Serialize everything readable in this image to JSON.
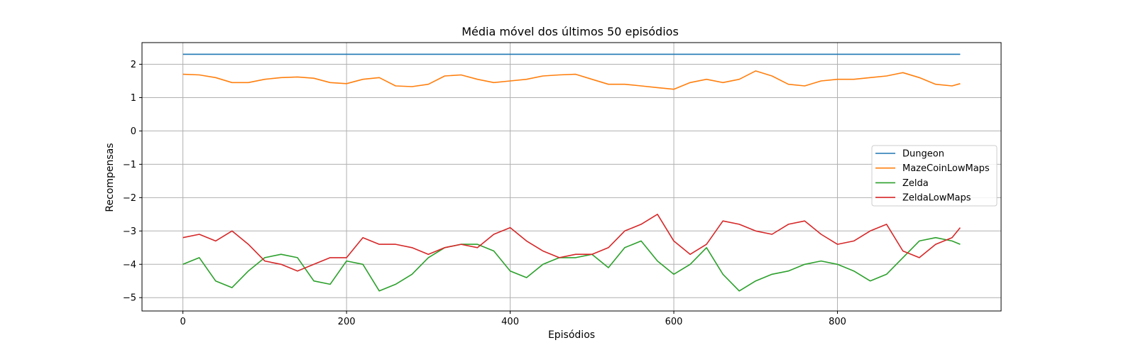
{
  "chart_data": {
    "type": "line",
    "title": "Média móvel dos últimos 50 episódios",
    "xlabel": "Episódios",
    "ylabel": "Recompensas",
    "xlim": [
      -50,
      1000
    ],
    "ylim": [
      -5.4,
      2.65
    ],
    "xticks": [
      0,
      200,
      400,
      600,
      800
    ],
    "yticks": [
      -5,
      -4,
      -3,
      -2,
      -1,
      0,
      1,
      2
    ],
    "ytick_labels": [
      "−5",
      "−4",
      "−3",
      "−2",
      "−1",
      "0",
      "1",
      "2"
    ],
    "grid": true,
    "legend_position": "right",
    "series": [
      {
        "name": "Dungeon",
        "color": "#1f77b4",
        "x": [
          0,
          950
        ],
        "y": [
          2.3,
          2.3
        ]
      },
      {
        "name": "MazeCoinLowMaps",
        "color": "#ff7f0e",
        "x": [
          0,
          20,
          40,
          60,
          80,
          100,
          120,
          140,
          160,
          180,
          200,
          220,
          240,
          260,
          280,
          300,
          320,
          340,
          360,
          380,
          400,
          420,
          440,
          460,
          480,
          500,
          520,
          540,
          560,
          580,
          600,
          620,
          640,
          660,
          680,
          700,
          720,
          740,
          760,
          780,
          800,
          820,
          840,
          860,
          880,
          900,
          920,
          940,
          950
        ],
        "y": [
          1.7,
          1.68,
          1.6,
          1.45,
          1.45,
          1.55,
          1.6,
          1.62,
          1.58,
          1.45,
          1.42,
          1.55,
          1.6,
          1.35,
          1.33,
          1.4,
          1.65,
          1.68,
          1.55,
          1.45,
          1.5,
          1.55,
          1.65,
          1.68,
          1.7,
          1.55,
          1.4,
          1.4,
          1.35,
          1.3,
          1.25,
          1.45,
          1.55,
          1.45,
          1.55,
          1.8,
          1.65,
          1.4,
          1.35,
          1.5,
          1.55,
          1.55,
          1.6,
          1.65,
          1.75,
          1.6,
          1.4,
          1.35,
          1.42
        ]
      },
      {
        "name": "Zelda",
        "color": "#2ca02c",
        "x": [
          0,
          20,
          40,
          60,
          80,
          100,
          120,
          140,
          160,
          180,
          200,
          220,
          240,
          260,
          280,
          300,
          320,
          340,
          360,
          380,
          400,
          420,
          440,
          460,
          480,
          500,
          520,
          540,
          560,
          580,
          600,
          620,
          640,
          660,
          680,
          700,
          720,
          740,
          760,
          780,
          800,
          820,
          840,
          860,
          880,
          900,
          920,
          940,
          950
        ],
        "y": [
          -4.0,
          -3.8,
          -4.5,
          -4.7,
          -4.2,
          -3.8,
          -3.7,
          -3.8,
          -4.5,
          -4.6,
          -3.9,
          -4.0,
          -4.8,
          -4.6,
          -4.3,
          -3.8,
          -3.5,
          -3.4,
          -3.4,
          -3.6,
          -4.2,
          -4.4,
          -4.0,
          -3.8,
          -3.8,
          -3.7,
          -4.1,
          -3.5,
          -3.3,
          -3.9,
          -4.3,
          -4.0,
          -3.5,
          -4.3,
          -4.8,
          -4.5,
          -4.3,
          -4.2,
          -4.0,
          -3.9,
          -4.0,
          -4.2,
          -4.5,
          -4.3,
          -3.8,
          -3.3,
          -3.2,
          -3.3,
          -3.4
        ]
      },
      {
        "name": "ZeldaLowMaps",
        "color": "#d62728",
        "x": [
          0,
          20,
          40,
          60,
          80,
          100,
          120,
          140,
          160,
          180,
          200,
          220,
          240,
          260,
          280,
          300,
          320,
          340,
          360,
          380,
          400,
          420,
          440,
          460,
          480,
          500,
          520,
          540,
          560,
          580,
          600,
          620,
          640,
          660,
          680,
          700,
          720,
          740,
          760,
          780,
          800,
          820,
          840,
          860,
          880,
          900,
          920,
          940,
          950
        ],
        "y": [
          -3.2,
          -3.1,
          -3.3,
          -3.0,
          -3.4,
          -3.9,
          -4.0,
          -4.2,
          -4.0,
          -3.8,
          -3.8,
          -3.2,
          -3.4,
          -3.4,
          -3.5,
          -3.7,
          -3.5,
          -3.4,
          -3.5,
          -3.1,
          -2.9,
          -3.3,
          -3.6,
          -3.8,
          -3.7,
          -3.7,
          -3.5,
          -3.0,
          -2.8,
          -2.5,
          -3.3,
          -3.7,
          -3.4,
          -2.7,
          -2.8,
          -3.0,
          -3.1,
          -2.8,
          -2.7,
          -3.1,
          -3.4,
          -3.3,
          -3.0,
          -2.8,
          -3.6,
          -3.8,
          -3.4,
          -3.2,
          -2.9
        ]
      }
    ]
  }
}
